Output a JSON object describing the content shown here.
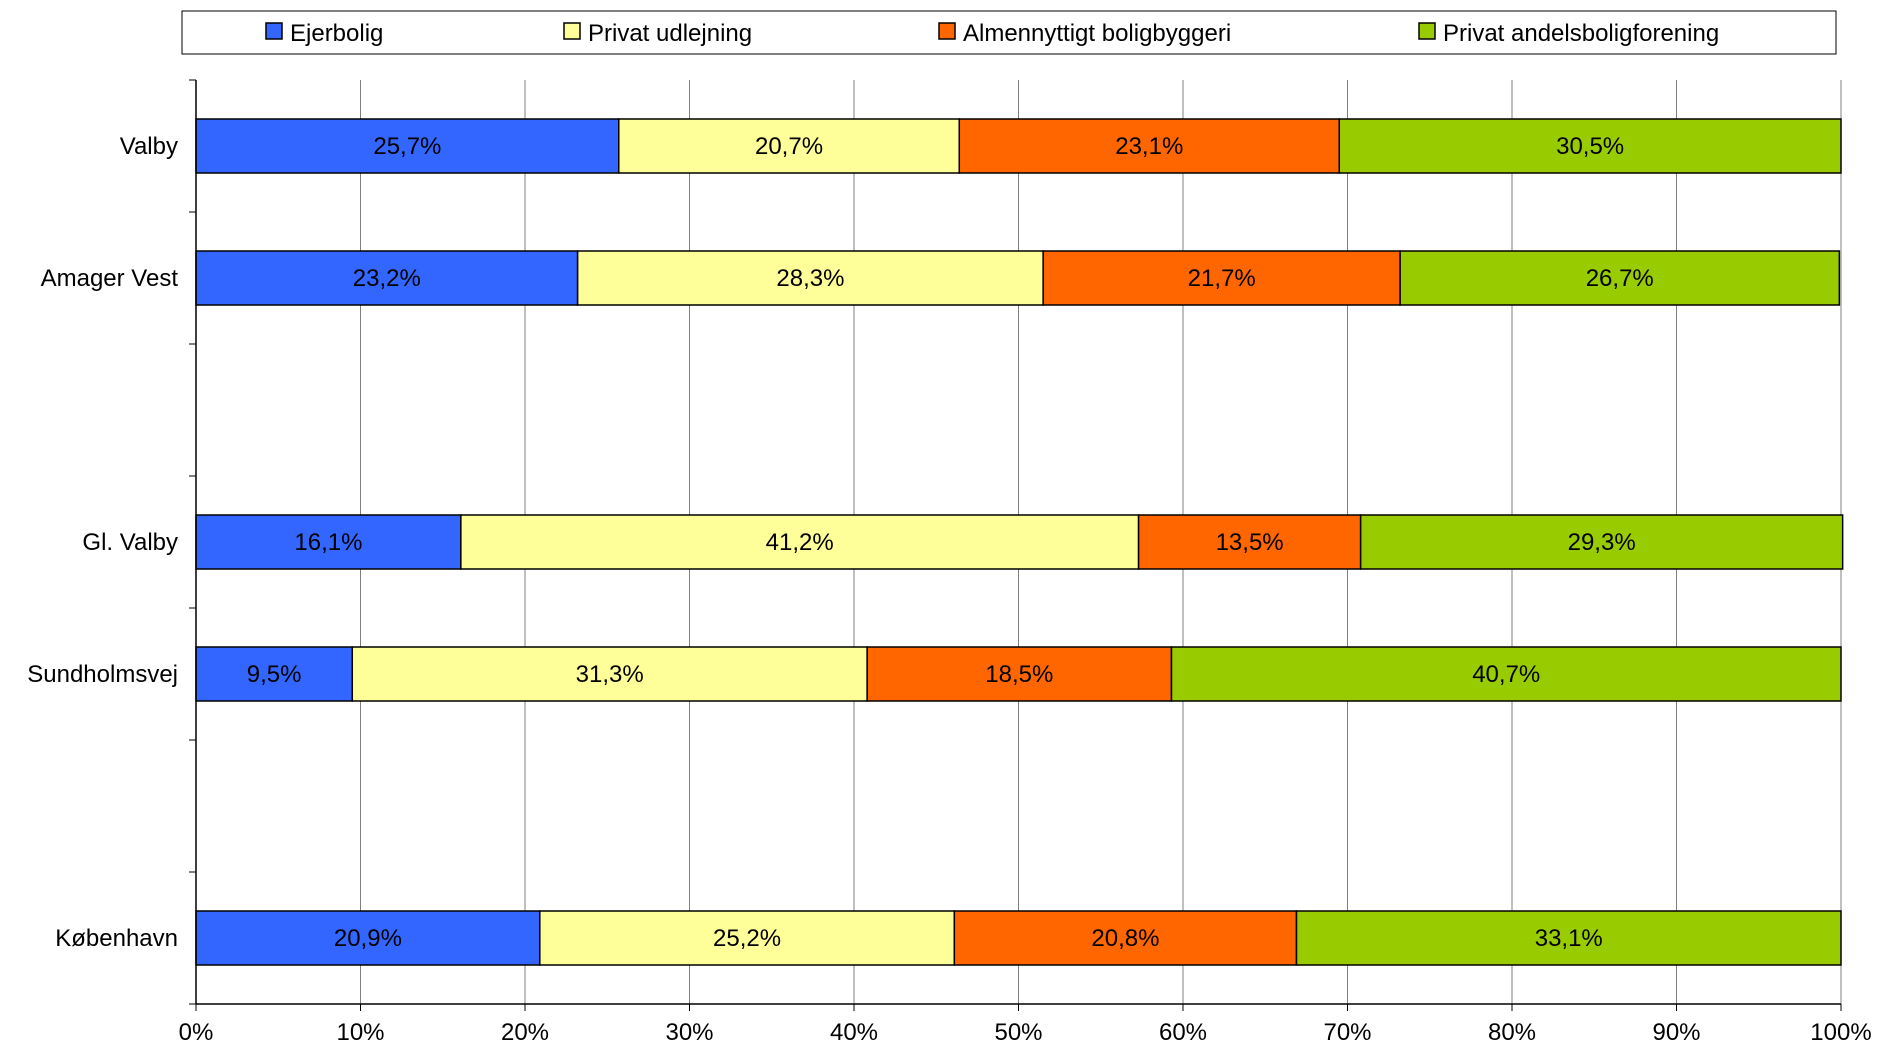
{
  "chart_data": {
    "type": "bar",
    "orientation": "horizontal",
    "stacked": "percent",
    "categories": [
      "Valby",
      "Amager Vest",
      "",
      "Gl. Valby",
      "Sundholmsvej",
      "",
      "København"
    ],
    "series": [
      {
        "name": "Ejerbolig",
        "color": "#3366ff",
        "values": [
          25.7,
          23.2,
          null,
          16.1,
          9.5,
          null,
          20.9
        ],
        "labels": [
          "25,7%",
          "23,2%",
          "",
          "16,1%",
          "9,5%",
          "",
          "20,9%"
        ]
      },
      {
        "name": "Privat udlejning",
        "color": "#ffff99",
        "values": [
          20.7,
          28.3,
          null,
          41.2,
          31.3,
          null,
          25.2
        ],
        "labels": [
          "20,7%",
          "28,3%",
          "",
          "41,2%",
          "31,3%",
          "",
          "25,2%"
        ]
      },
      {
        "name": "Almennyttigt boligbyggeri",
        "color": "#ff6600",
        "values": [
          23.1,
          21.7,
          null,
          13.5,
          18.5,
          null,
          20.8
        ],
        "labels": [
          "23,1%",
          "21,7%",
          "",
          "13,5%",
          "18,5%",
          "",
          "20,8%"
        ]
      },
      {
        "name": "Privat andelsboligforening",
        "color": "#99cc00",
        "values": [
          30.5,
          26.7,
          null,
          29.3,
          40.7,
          null,
          33.1
        ],
        "labels": [
          "30,5%",
          "26,7%",
          "",
          "29,3%",
          "40,7%",
          "",
          "33,1%"
        ]
      }
    ],
    "x_ticks": [
      "0%",
      "10%",
      "20%",
      "30%",
      "40%",
      "50%",
      "60%",
      "70%",
      "80%",
      "90%",
      "100%"
    ],
    "xlim": [
      0,
      100
    ],
    "grid": "vertical",
    "legend": "top"
  }
}
